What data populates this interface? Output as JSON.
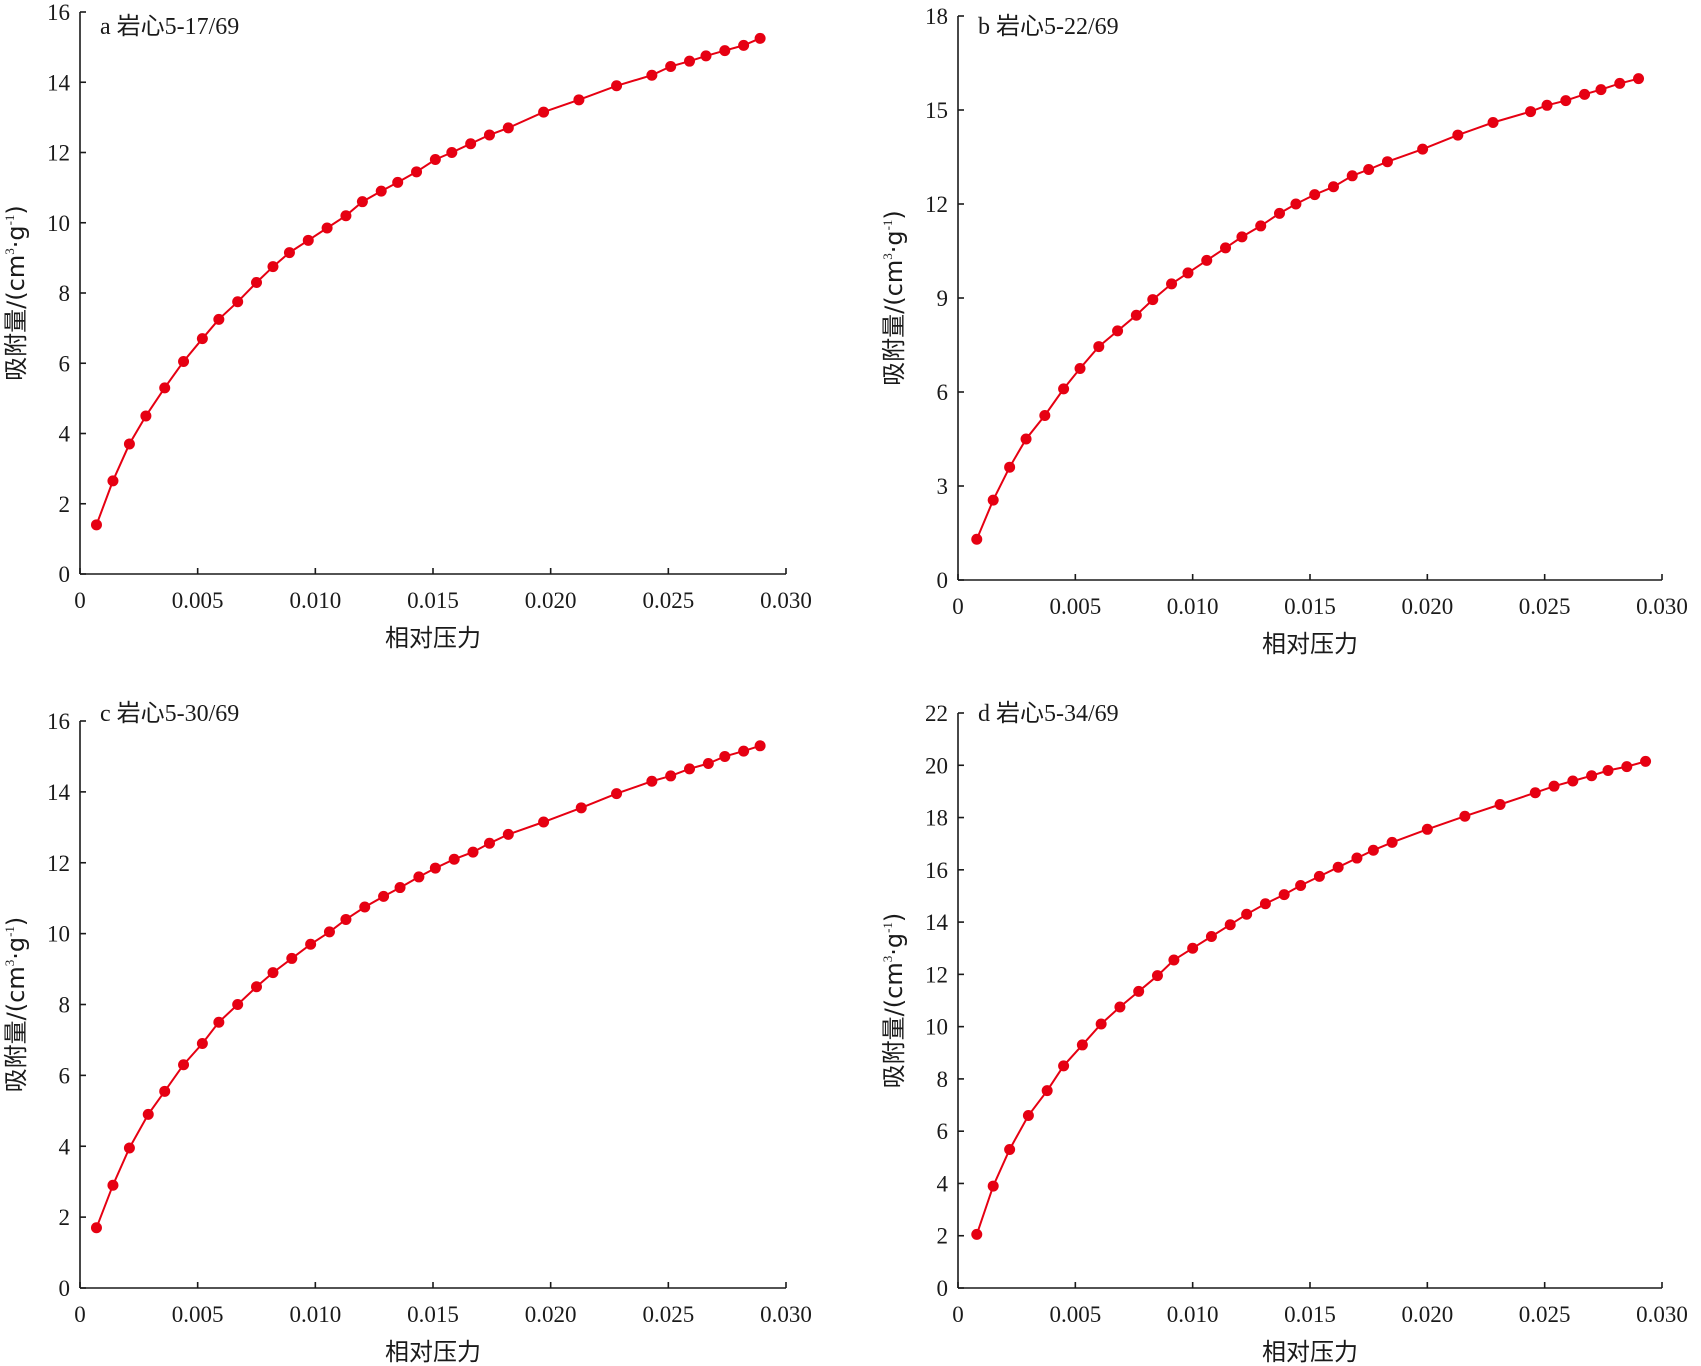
{
  "colors": {
    "series": "#e60012",
    "axis": "#1a1a1a",
    "background": "#ffffff"
  },
  "chart_data": [
    {
      "type": "line",
      "title": "a 岩心5-17/69",
      "xlabel": "相对压力",
      "ylabel": {
        "main": "吸附量/(cm",
        "sup1": "3",
        "mid": "·g",
        "sup2": "-1",
        "end": ")"
      },
      "xlim": [
        0,
        0.03
      ],
      "ylim": [
        0,
        16
      ],
      "xticks": [
        0,
        0.005,
        0.01,
        0.015,
        0.02,
        0.025,
        0.03
      ],
      "xtick_labels": [
        "0",
        "0.005",
        "0.010",
        "0.015",
        "0.020",
        "0.025",
        "0.030"
      ],
      "yticks": [
        0,
        2,
        4,
        6,
        8,
        10,
        12,
        14,
        16
      ],
      "ytick_labels": [
        "0",
        "2",
        "4",
        "6",
        "8",
        "10",
        "12",
        "14",
        "16"
      ],
      "series": [
        {
          "name": "岩心5-17/69",
          "x": [
            0.0007,
            0.0014,
            0.0021,
            0.0028,
            0.0036,
            0.0044,
            0.0052,
            0.0059,
            0.0067,
            0.0075,
            0.0082,
            0.0089,
            0.0097,
            0.0105,
            0.0113,
            0.012,
            0.0128,
            0.0135,
            0.0143,
            0.0151,
            0.0158,
            0.0166,
            0.0174,
            0.0182,
            0.0197,
            0.0212,
            0.0228,
            0.0243,
            0.0251,
            0.0259,
            0.0266,
            0.0274,
            0.0282,
            0.0289
          ],
          "y": [
            1.4,
            2.65,
            3.7,
            4.5,
            5.3,
            6.05,
            6.7,
            7.25,
            7.75,
            8.3,
            8.75,
            9.15,
            9.5,
            9.85,
            10.2,
            10.6,
            10.9,
            11.15,
            11.45,
            11.8,
            12.0,
            12.25,
            12.5,
            12.7,
            13.15,
            13.5,
            13.9,
            14.2,
            14.45,
            14.6,
            14.75,
            14.9,
            15.05,
            15.25
          ]
        }
      ]
    },
    {
      "type": "line",
      "title": "b 岩心5-22/69",
      "xlabel": "相对压力",
      "ylabel": {
        "main": "吸附量/(cm",
        "sup1": "3",
        "mid": "·g",
        "sup2": "-1",
        "end": ")"
      },
      "xlim": [
        0,
        0.03
      ],
      "ylim": [
        0,
        18
      ],
      "xticks": [
        0,
        0.005,
        0.01,
        0.015,
        0.02,
        0.025,
        0.03
      ],
      "xtick_labels": [
        "0",
        "0.005",
        "0.010",
        "0.015",
        "0.020",
        "0.025",
        "0.030"
      ],
      "yticks": [
        0,
        3,
        6,
        9,
        12,
        15,
        18
      ],
      "ytick_labels": [
        "0",
        "3",
        "6",
        "9",
        "12",
        "15",
        "18"
      ],
      "series": [
        {
          "name": "岩心5-22/69",
          "x": [
            0.0008,
            0.0015,
            0.0022,
            0.0029,
            0.0037,
            0.0045,
            0.0052,
            0.006,
            0.0068,
            0.0076,
            0.0083,
            0.0091,
            0.0098,
            0.0106,
            0.0114,
            0.0121,
            0.0129,
            0.0137,
            0.0144,
            0.0152,
            0.016,
            0.0168,
            0.0175,
            0.0183,
            0.0198,
            0.0213,
            0.0228,
            0.0244,
            0.0251,
            0.0259,
            0.0267,
            0.0274,
            0.0282,
            0.029
          ],
          "y": [
            1.3,
            2.55,
            3.6,
            4.5,
            5.25,
            6.1,
            6.75,
            7.45,
            7.95,
            8.45,
            8.95,
            9.45,
            9.8,
            10.2,
            10.6,
            10.95,
            11.3,
            11.7,
            12.0,
            12.3,
            12.55,
            12.9,
            13.1,
            13.35,
            13.75,
            14.2,
            14.6,
            14.95,
            15.15,
            15.3,
            15.5,
            15.65,
            15.85,
            16.0
          ]
        }
      ]
    },
    {
      "type": "line",
      "title": "c 岩心5-30/69",
      "xlabel": "相对压力",
      "ylabel": {
        "main": "吸附量/(cm",
        "sup1": "3",
        "mid": "·g",
        "sup2": "-1",
        "end": ")"
      },
      "xlim": [
        0,
        0.03
      ],
      "ylim": [
        0,
        16
      ],
      "xticks": [
        0,
        0.005,
        0.01,
        0.015,
        0.02,
        0.025,
        0.03
      ],
      "xtick_labels": [
        "0",
        "0.005",
        "0.010",
        "0.015",
        "0.020",
        "0.025",
        "0.030"
      ],
      "yticks": [
        0,
        2,
        4,
        6,
        8,
        10,
        12,
        14,
        16
      ],
      "ytick_labels": [
        "0",
        "2",
        "4",
        "6",
        "8",
        "10",
        "12",
        "14",
        "16"
      ],
      "series": [
        {
          "name": "岩心5-30/69",
          "x": [
            0.0007,
            0.0014,
            0.0021,
            0.0029,
            0.0036,
            0.0044,
            0.0052,
            0.0059,
            0.0067,
            0.0075,
            0.0082,
            0.009,
            0.0098,
            0.0106,
            0.0113,
            0.0121,
            0.0129,
            0.0136,
            0.0144,
            0.0151,
            0.0159,
            0.0167,
            0.0174,
            0.0182,
            0.0197,
            0.0213,
            0.0228,
            0.0243,
            0.0251,
            0.0259,
            0.0267,
            0.0274,
            0.0282,
            0.0289
          ],
          "y": [
            1.7,
            2.9,
            3.95,
            4.9,
            5.55,
            6.3,
            6.9,
            7.5,
            8.0,
            8.5,
            8.9,
            9.3,
            9.7,
            10.05,
            10.4,
            10.75,
            11.05,
            11.3,
            11.6,
            11.85,
            12.1,
            12.3,
            12.55,
            12.8,
            13.15,
            13.55,
            13.95,
            14.3,
            14.45,
            14.65,
            14.8,
            15.0,
            15.15,
            15.3
          ]
        }
      ]
    },
    {
      "type": "line",
      "title": "d 岩心5-34/69",
      "xlabel": "相对压力",
      "ylabel": {
        "main": "吸附量/(cm",
        "sup1": "3",
        "mid": "·g",
        "sup2": "-1",
        "end": ")"
      },
      "xlim": [
        0,
        0.03
      ],
      "ylim": [
        0,
        22
      ],
      "xticks": [
        0,
        0.005,
        0.01,
        0.015,
        0.02,
        0.025,
        0.03
      ],
      "xtick_labels": [
        "0",
        "0.005",
        "0.010",
        "0.015",
        "0.020",
        "0.025",
        "0.030"
      ],
      "yticks": [
        0,
        2,
        4,
        6,
        8,
        10,
        12,
        14,
        16,
        18,
        20,
        22
      ],
      "ytick_labels": [
        "0",
        "2",
        "4",
        "6",
        "8",
        "10",
        "12",
        "14",
        "16",
        "18",
        "20",
        "22"
      ],
      "series": [
        {
          "name": "岩心5-34/69",
          "x": [
            0.0008,
            0.0015,
            0.0022,
            0.003,
            0.0038,
            0.0045,
            0.0053,
            0.0061,
            0.0069,
            0.0077,
            0.0085,
            0.0092,
            0.01,
            0.0108,
            0.0116,
            0.0123,
            0.0131,
            0.0139,
            0.0146,
            0.0154,
            0.0162,
            0.017,
            0.0177,
            0.0185,
            0.02,
            0.0216,
            0.0231,
            0.0246,
            0.0254,
            0.0262,
            0.027,
            0.0277,
            0.0285,
            0.0293
          ],
          "y": [
            2.05,
            3.9,
            5.3,
            6.6,
            7.55,
            8.5,
            9.3,
            10.1,
            10.75,
            11.35,
            11.95,
            12.55,
            13.0,
            13.45,
            13.9,
            14.3,
            14.7,
            15.05,
            15.4,
            15.75,
            16.1,
            16.45,
            16.75,
            17.05,
            17.55,
            18.05,
            18.5,
            18.95,
            19.2,
            19.4,
            19.6,
            19.8,
            19.95,
            20.15
          ]
        }
      ]
    }
  ]
}
